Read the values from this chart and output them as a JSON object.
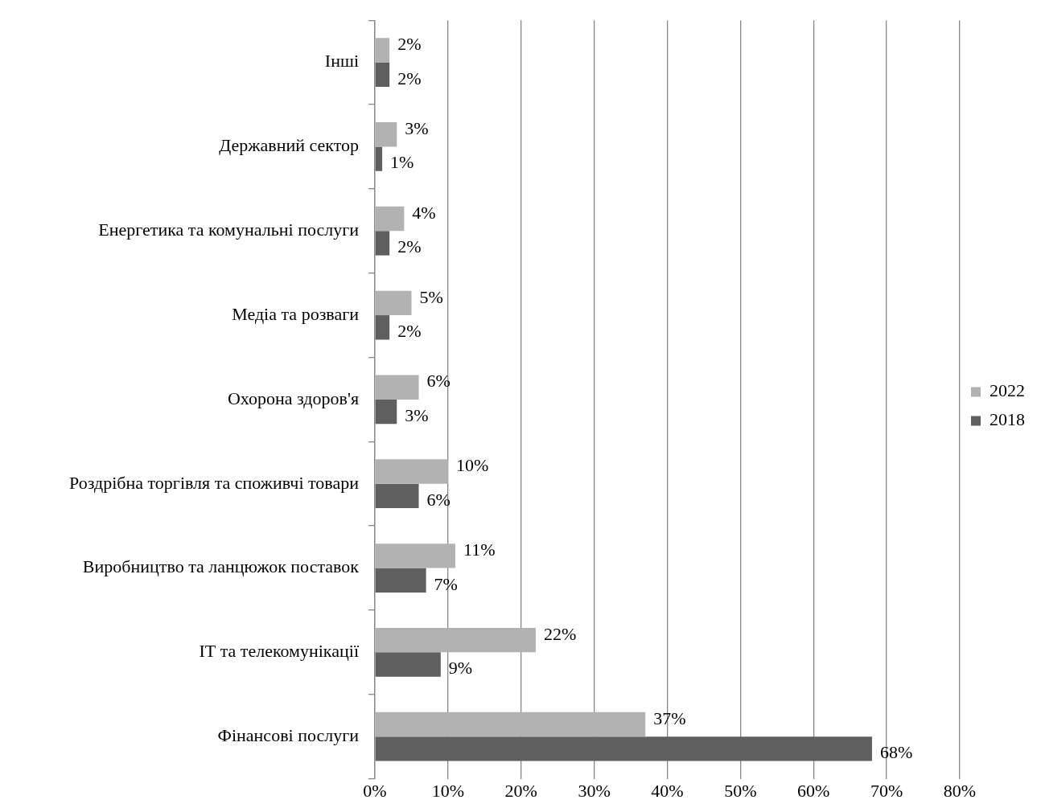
{
  "chart_data": {
    "type": "bar",
    "orientation": "horizontal",
    "categories": [
      "Інші",
      "Державний сектор",
      "Енергетика та комунальні послуги",
      "Медіа та розваги",
      "Охорона здоров'я",
      "Роздрібна торгівля та споживчі товари",
      "Виробництво та ланцюжок поставок",
      "ІТ та телекомунікації",
      "Фінансові послуги"
    ],
    "series": [
      {
        "name": "2022",
        "color": "#b2b2b2",
        "values": [
          2,
          3,
          4,
          5,
          6,
          10,
          11,
          22,
          37
        ],
        "value_labels": [
          "2%",
          "3%",
          "4%",
          "5%",
          "6%",
          "10%",
          "11%",
          "22%",
          "37%"
        ]
      },
      {
        "name": "2018",
        "color": "#5f5f5f",
        "values": [
          2,
          1,
          2,
          2,
          3,
          6,
          7,
          9,
          68
        ],
        "value_labels": [
          "2%",
          "1%",
          "2%",
          "2%",
          "3%",
          "6%",
          "7%",
          "9%",
          "68%"
        ]
      }
    ],
    "xlim": [
      0,
      80
    ],
    "xticks": [
      {
        "value": 0,
        "label": "0%"
      },
      {
        "value": 10,
        "label": "10%"
      },
      {
        "value": 20,
        "label": "20%"
      },
      {
        "value": 30,
        "label": "30%"
      },
      {
        "value": 40,
        "label": "40%"
      },
      {
        "value": 50,
        "label": "50%"
      },
      {
        "value": 60,
        "label": "60%"
      },
      {
        "value": 70,
        "label": "70%"
      },
      {
        "value": 80,
        "label": "80%"
      }
    ],
    "grid": "x",
    "legend": "right"
  }
}
